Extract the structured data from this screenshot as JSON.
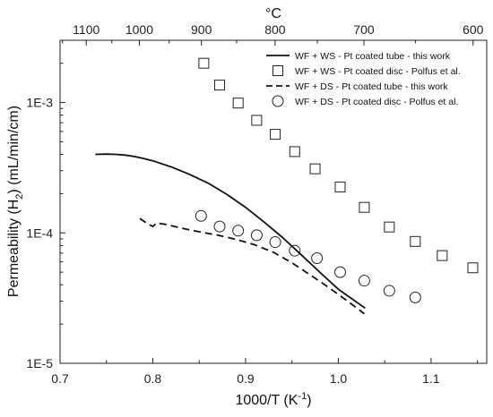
{
  "chart_data": {
    "type": "line",
    "xlabel": "1000/T (K",
    "xlabel_sup": "-1",
    "xlabel_end": ")",
    "ylabel": "Permeability (H",
    "ylabel_sub": "2",
    "ylabel_end": ") (mL/min/cm)",
    "top_xlabel": "°C",
    "xlim": [
      0.7,
      1.16
    ],
    "ylim": [
      1e-05,
      0.003
    ],
    "y_scale": "log",
    "x_ticks": [
      {
        "value": 0.7,
        "label": "0.7"
      },
      {
        "value": 0.8,
        "label": "0.8"
      },
      {
        "value": 0.9,
        "label": "0.9"
      },
      {
        "value": 1.0,
        "label": "1.0"
      },
      {
        "value": 1.1,
        "label": "1.1"
      }
    ],
    "y_ticks": [
      {
        "value": 1e-05,
        "label": "1E-5"
      },
      {
        "value": 0.0001,
        "label": "1E-4"
      },
      {
        "value": 0.001,
        "label": "1E-3"
      }
    ],
    "top_ticks": [
      {
        "celsius": 1100,
        "label": "1100"
      },
      {
        "celsius": 1000,
        "label": "1000"
      },
      {
        "celsius": 900,
        "label": "900"
      },
      {
        "celsius": 800,
        "label": "800"
      },
      {
        "celsius": 700,
        "label": "700"
      },
      {
        "celsius": 600,
        "label": "600"
      }
    ],
    "legend_position": "top-right",
    "series": [
      {
        "name": "WF + WS - Pt coated tube - this work",
        "style": "solid-line",
        "x": [
          0.738,
          0.75,
          0.76,
          0.77,
          0.78,
          0.79,
          0.8,
          0.82,
          0.84,
          0.86,
          0.88,
          0.9,
          0.92,
          0.94,
          0.96,
          0.98,
          1.0,
          1.029
        ],
        "y": [
          0.0004,
          0.000402,
          0.0004,
          0.000395,
          0.000385,
          0.000372,
          0.000357,
          0.00032,
          0.00028,
          0.00024,
          0.000197,
          0.000157,
          0.000121,
          9.2e-05,
          6.8e-05,
          5e-05,
          3.7e-05,
          2.65e-05
        ]
      },
      {
        "name": "WF + WS - Pt coated disc - Polfus et al.",
        "style": "open-square",
        "x": [
          0.855,
          0.872,
          0.892,
          0.912,
          0.932,
          0.953,
          0.975,
          1.002,
          1.028,
          1.055,
          1.083,
          1.112,
          1.145
        ],
        "y": [
          0.002,
          0.00136,
          0.00099,
          0.00073,
          0.00057,
          0.00042,
          0.00031,
          0.000225,
          0.000157,
          0.000111,
          8.6e-05,
          6.7e-05,
          5.4e-05
        ]
      },
      {
        "name": "WF + DS - Pt coated tube - this work",
        "style": "dashed-line",
        "x": [
          0.786,
          0.794,
          0.8,
          0.804,
          0.815,
          0.83,
          0.85,
          0.87,
          0.89,
          0.91,
          0.93,
          0.95,
          0.97,
          0.99,
          1.01,
          1.028
        ],
        "y": [
          0.000129,
          0.000118,
          0.000112,
          0.000119,
          0.000116,
          0.000109,
          0.000102,
          9.6e-05,
          8.9e-05,
          8.1e-05,
          7.1e-05,
          5.9e-05,
          4.75e-05,
          3.8e-05,
          3e-05,
          2.4e-05
        ]
      },
      {
        "name": "WF + DS - Pt coated disc - Polfus et al.",
        "style": "open-circle",
        "x": [
          0.852,
          0.872,
          0.892,
          0.912,
          0.932,
          0.953,
          0.977,
          1.002,
          1.028,
          1.055,
          1.083
        ],
        "y": [
          0.000135,
          0.000112,
          0.000104,
          9.6e-05,
          8.5e-05,
          7.3e-05,
          6.4e-05,
          5e-05,
          4.3e-05,
          3.6e-05,
          3.2e-05
        ]
      }
    ]
  }
}
